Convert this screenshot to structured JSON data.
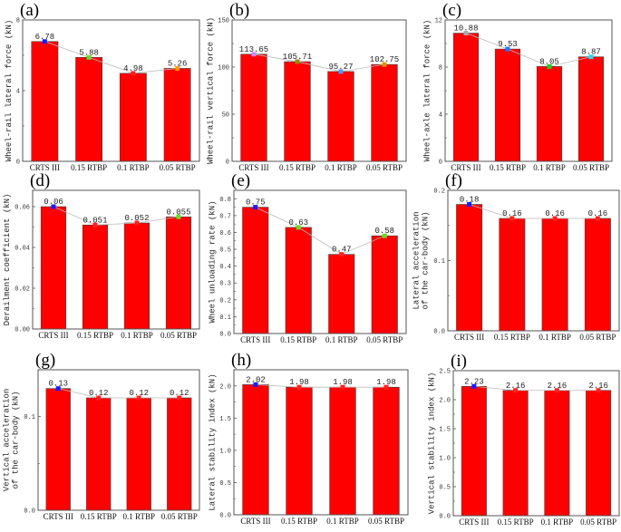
{
  "chart_data": [
    {
      "panel": "(a)",
      "type": "bar",
      "ylabel": "Wheel-rail lateral force (kN)",
      "ylim": [
        0,
        8
      ],
      "yticks": [
        "0",
        "4",
        "8"
      ],
      "ytick_values": [
        0,
        4,
        8
      ],
      "categories": [
        "CRTS III",
        "0.15 RTBP",
        "0.1 RTBP",
        "0.05 RTBP"
      ],
      "values": [
        6.78,
        5.88,
        4.98,
        5.26
      ],
      "value_labels": [
        "6.78",
        "5.88",
        "4.98",
        "5.26"
      ],
      "marker_colors": [
        "#1a1aff",
        "#66dd22",
        "#ff2020",
        "#ff9900"
      ],
      "bar_color": "#ff0000",
      "line_color": "#bbbbbb"
    },
    {
      "panel": "(b)",
      "type": "bar",
      "ylabel": "Wheel-rail vertical force (kN)",
      "ylim": [
        0,
        150
      ],
      "yticks": [
        "0",
        "50",
        "100",
        "150"
      ],
      "ytick_values": [
        0,
        50,
        100,
        150
      ],
      "categories": [
        "CRTS III",
        "0.15 RTBP",
        "0.1 RTBP",
        "0.05 RTBP"
      ],
      "values": [
        113.65,
        105.71,
        95.27,
        102.75
      ],
      "value_labels": [
        "113.65",
        "105.71",
        "95.27",
        "102.75"
      ],
      "marker_colors": [
        "#cc88ff",
        "#998800",
        "#5599ee",
        "#dd9900"
      ],
      "bar_color": "#ff0000",
      "line_color": "#bbbbbb"
    },
    {
      "panel": "(c)",
      "type": "bar",
      "ylabel": "Wheel-axle lateral force (kN)",
      "ylim": [
        0,
        12
      ],
      "yticks": [
        "0",
        "4",
        "8",
        "12"
      ],
      "ytick_values": [
        0,
        4,
        8,
        12
      ],
      "categories": [
        "CRTS III",
        "0.15 RTBP",
        "0.1 RTBP",
        "0.05 RTBP"
      ],
      "values": [
        10.88,
        9.53,
        8.05,
        8.87
      ],
      "value_labels": [
        "10.88",
        "9.53",
        "8.05",
        "8.87"
      ],
      "marker_colors": [
        "#aaaaaa",
        "#2277ff",
        "#22cc22",
        "#22ddee"
      ],
      "bar_color": "#ff0000",
      "line_color": "#bbbbbb"
    },
    {
      "panel": "(d)",
      "type": "bar",
      "ylabel": "Derailment coefficient (kN)",
      "ylim": [
        0,
        0.068
      ],
      "yticks": [
        "0.00",
        "0.02",
        "0.04",
        "0.06"
      ],
      "ytick_values": [
        0,
        0.02,
        0.04,
        0.06
      ],
      "categories": [
        "CRTS III",
        "0.15 RTBP",
        "0.1 RTBP",
        "0.05 RTBP"
      ],
      "values": [
        0.06,
        0.051,
        0.052,
        0.055
      ],
      "value_labels": [
        "0.06",
        "0.051",
        "0.052",
        "0.055"
      ],
      "marker_colors": [
        "#1a1aff",
        "#ff2020",
        "#ff2020",
        "#66dd22"
      ],
      "bar_color": "#ff0000",
      "line_color": "#bbbbbb"
    },
    {
      "panel": "(e)",
      "type": "bar",
      "ylabel": "Wheel unloading rate (kN)",
      "ylim": [
        0,
        0.85
      ],
      "yticks": [
        "0.0",
        "0.1",
        "0.2",
        "0.3",
        "0.4",
        "0.5",
        "0.6",
        "0.7",
        "0.8"
      ],
      "ytick_values": [
        0,
        0.1,
        0.2,
        0.3,
        0.4,
        0.5,
        0.6,
        0.7,
        0.8
      ],
      "categories": [
        "CRTS III",
        "0.15 RTBP",
        "0.1 RTBP",
        "0.05 RTBP"
      ],
      "values": [
        0.75,
        0.63,
        0.47,
        0.58
      ],
      "value_labels": [
        "0.75",
        "0.63",
        "0.47",
        "0.58"
      ],
      "marker_colors": [
        "#1a1aff",
        "#66dd22",
        "#ff2020",
        "#66dd22"
      ],
      "bar_color": "#ff0000",
      "line_color": "#bbbbbb"
    },
    {
      "panel": "(f)",
      "type": "bar",
      "ylabel": "Lateral acceleration of the car-body (kN)",
      "ylim": [
        0,
        0.2
      ],
      "yticks": [
        "0.0",
        "0.1",
        "0.2"
      ],
      "ytick_values": [
        0,
        0.1,
        0.2
      ],
      "categories": [
        "CRTS III",
        "0.15 RTBP",
        "0.1 RTBP",
        "0.05 RTBP"
      ],
      "values": [
        0.18,
        0.16,
        0.16,
        0.16
      ],
      "value_labels": [
        "0.18",
        "0.16",
        "0.16",
        "0.16"
      ],
      "marker_colors": [
        "#1a1aff",
        "#ff2020",
        "#ff2020",
        "#ff2020"
      ],
      "bar_color": "#ff0000",
      "line_color": "#bbbbbb"
    },
    {
      "panel": "(g)",
      "type": "bar",
      "ylabel": "Vertical acceleration of the car-body (kN)",
      "ylim": [
        0,
        0.15
      ],
      "yticks": [
        "0.0",
        "0.1"
      ],
      "ytick_values": [
        0,
        0.1
      ],
      "categories": [
        "CRTS III",
        "0.15 RTBP",
        "0.1 RTBP",
        "0.05 RTBP"
      ],
      "values": [
        0.13,
        0.12,
        0.12,
        0.12
      ],
      "value_labels": [
        "0.13",
        "0.12",
        "0.12",
        "0.12"
      ],
      "marker_colors": [
        "#1a1aff",
        "#ff2020",
        "#ff2020",
        "#ff2020"
      ],
      "bar_color": "#ff0000",
      "line_color": "#bbbbbb"
    },
    {
      "panel": "(h)",
      "type": "bar",
      "ylabel": "Lateral stability index (kN)",
      "ylim": [
        0,
        2.25
      ],
      "yticks": [
        "0.0",
        "0.5",
        "1.0",
        "1.5",
        "2.0"
      ],
      "ytick_values": [
        0,
        0.5,
        1,
        1.5,
        2
      ],
      "categories": [
        "CRTS III",
        "0.15 RTBP",
        "0.1 RTBP",
        "0.05 RTBP"
      ],
      "values": [
        2.02,
        1.98,
        1.98,
        1.98
      ],
      "value_labels": [
        "2.02",
        "1.98",
        "1.98",
        "1.98"
      ],
      "marker_colors": [
        "#1a1aff",
        "#ff2020",
        "#ff2020",
        "#ff2020"
      ],
      "bar_color": "#ff0000",
      "line_color": "#bbbbbb"
    },
    {
      "panel": "(i)",
      "type": "bar",
      "ylabel": "Vertical stability index (kN)",
      "ylim": [
        0,
        2.5
      ],
      "yticks": [
        "0.0",
        "0.5",
        "1.0",
        "1.5",
        "2.0",
        "2.5"
      ],
      "ytick_values": [
        0,
        0.5,
        1,
        1.5,
        2,
        2.5
      ],
      "categories": [
        "CRTS III",
        "0.15 RTBP",
        "0.1 RTBP",
        "0.05 RTBP"
      ],
      "values": [
        2.23,
        2.16,
        2.16,
        2.16
      ],
      "value_labels": [
        "2.23",
        "2.16",
        "2.16",
        "2.16"
      ],
      "marker_colors": [
        "#1a1aff",
        "#ff2020",
        "#ff2020",
        "#ff2020"
      ],
      "bar_color": "#ff0000",
      "line_color": "#bbbbbb"
    }
  ]
}
